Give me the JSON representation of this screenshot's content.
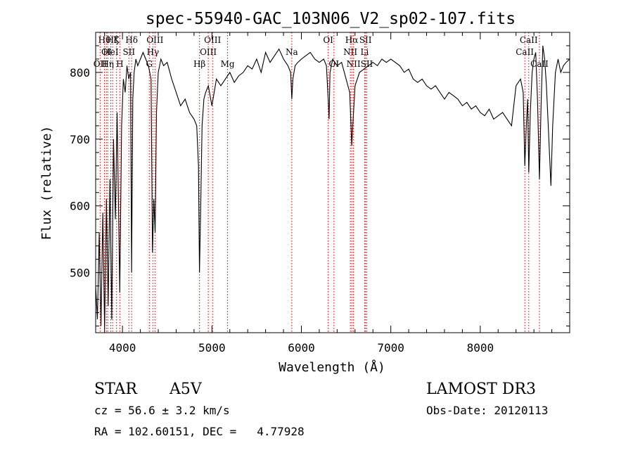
{
  "chart_data": {
    "type": "line",
    "title": "spec-55940-GAC_103N06_V2_sp02-107.fits",
    "xlabel": "Wavelength (Å)",
    "ylabel": "Flux (relative)",
    "xlim": [
      3700,
      9000
    ],
    "ylim": [
      410,
      860
    ],
    "grid": false,
    "x_ticks": [
      "4000",
      "5000",
      "6000",
      "7000",
      "8000"
    ],
    "y_ticks": [
      "500",
      "600",
      "700",
      "800"
    ],
    "series": [
      {
        "points": [
          [
            3700,
            480
          ],
          [
            3720,
            430
          ],
          [
            3740,
            560
          ],
          [
            3760,
            420
          ],
          [
            3780,
            590
          ],
          [
            3800,
            415
          ],
          [
            3820,
            610
          ],
          [
            3840,
            450
          ],
          [
            3860,
            640
          ],
          [
            3880,
            430
          ],
          [
            3900,
            700
          ],
          [
            3920,
            580
          ],
          [
            3940,
            740
          ],
          [
            3950,
            650
          ],
          [
            3970,
            470
          ],
          [
            3990,
            720
          ],
          [
            4010,
            790
          ],
          [
            4030,
            770
          ],
          [
            4050,
            810
          ],
          [
            4070,
            790
          ],
          [
            4090,
            800
          ],
          [
            4102,
            500
          ],
          [
            4115,
            760
          ],
          [
            4130,
            800
          ],
          [
            4150,
            820
          ],
          [
            4170,
            810
          ],
          [
            4200,
            820
          ],
          [
            4230,
            830
          ],
          [
            4260,
            820
          ],
          [
            4290,
            810
          ],
          [
            4320,
            790
          ],
          [
            4335,
            530
          ],
          [
            4350,
            610
          ],
          [
            4365,
            560
          ],
          [
            4380,
            740
          ],
          [
            4400,
            800
          ],
          [
            4430,
            820
          ],
          [
            4460,
            810
          ],
          [
            4500,
            815
          ],
          [
            4550,
            790
          ],
          [
            4600,
            770
          ],
          [
            4650,
            750
          ],
          [
            4700,
            760
          ],
          [
            4750,
            740
          ],
          [
            4800,
            730
          ],
          [
            4830,
            720
          ],
          [
            4850,
            660
          ],
          [
            4861,
            500
          ],
          [
            4875,
            600
          ],
          [
            4890,
            720
          ],
          [
            4910,
            760
          ],
          [
            4930,
            770
          ],
          [
            4960,
            780
          ],
          [
            5000,
            750
          ],
          [
            5050,
            790
          ],
          [
            5100,
            780
          ],
          [
            5150,
            790
          ],
          [
            5200,
            800
          ],
          [
            5250,
            785
          ],
          [
            5300,
            795
          ],
          [
            5350,
            800
          ],
          [
            5400,
            810
          ],
          [
            5450,
            805
          ],
          [
            5500,
            820
          ],
          [
            5550,
            800
          ],
          [
            5600,
            830
          ],
          [
            5650,
            815
          ],
          [
            5700,
            825
          ],
          [
            5750,
            835
          ],
          [
            5800,
            820
          ],
          [
            5850,
            810
          ],
          [
            5880,
            800
          ],
          [
            5893,
            760
          ],
          [
            5905,
            790
          ],
          [
            5930,
            810
          ],
          [
            5960,
            815
          ],
          [
            6000,
            820
          ],
          [
            6050,
            825
          ],
          [
            6100,
            830
          ],
          [
            6150,
            820
          ],
          [
            6200,
            815
          ],
          [
            6250,
            820
          ],
          [
            6280,
            810
          ],
          [
            6300,
            760
          ],
          [
            6310,
            730
          ],
          [
            6320,
            800
          ],
          [
            6350,
            820
          ],
          [
            6400,
            810
          ],
          [
            6450,
            815
          ],
          [
            6500,
            790
          ],
          [
            6540,
            770
          ],
          [
            6555,
            720
          ],
          [
            6563,
            690
          ],
          [
            6575,
            720
          ],
          [
            6600,
            780
          ],
          [
            6650,
            800
          ],
          [
            6700,
            805
          ],
          [
            6750,
            810
          ],
          [
            6800,
            815
          ],
          [
            6850,
            810
          ],
          [
            6900,
            820
          ],
          [
            6950,
            815
          ],
          [
            7000,
            820
          ],
          [
            7050,
            815
          ],
          [
            7100,
            810
          ],
          [
            7150,
            800
          ],
          [
            7200,
            805
          ],
          [
            7250,
            790
          ],
          [
            7300,
            785
          ],
          [
            7350,
            790
          ],
          [
            7400,
            780
          ],
          [
            7450,
            775
          ],
          [
            7500,
            780
          ],
          [
            7550,
            770
          ],
          [
            7600,
            760
          ],
          [
            7650,
            770
          ],
          [
            7700,
            765
          ],
          [
            7750,
            760
          ],
          [
            7800,
            750
          ],
          [
            7850,
            755
          ],
          [
            7900,
            745
          ],
          [
            7950,
            750
          ],
          [
            8000,
            740
          ],
          [
            8050,
            735
          ],
          [
            8100,
            745
          ],
          [
            8150,
            730
          ],
          [
            8200,
            735
          ],
          [
            8250,
            740
          ],
          [
            8300,
            730
          ],
          [
            8350,
            720
          ],
          [
            8400,
            780
          ],
          [
            8450,
            790
          ],
          [
            8480,
            770
          ],
          [
            8498,
            660
          ],
          [
            8515,
            720
          ],
          [
            8530,
            760
          ],
          [
            8542,
            650
          ],
          [
            8560,
            740
          ],
          [
            8580,
            800
          ],
          [
            8600,
            820
          ],
          [
            8620,
            830
          ],
          [
            8640,
            760
          ],
          [
            8662,
            640
          ],
          [
            8680,
            750
          ],
          [
            8700,
            840
          ],
          [
            8720,
            820
          ],
          [
            8740,
            780
          ],
          [
            8760,
            720
          ],
          [
            8790,
            630
          ],
          [
            8810,
            720
          ],
          [
            8840,
            800
          ],
          [
            8870,
            820
          ],
          [
            8900,
            800
          ],
          [
            8930,
            810
          ],
          [
            8960,
            815
          ],
          [
            9000,
            820
          ]
        ]
      }
    ],
    "lines": [
      {
        "x": 3750,
        "labels": [
          {
            "text": "OII",
            "row": 3
          }
        ]
      },
      {
        "x": 3798,
        "labels": [
          {
            "text": "Hθ",
            "row": 1
          }
        ]
      },
      {
        "x": 3820,
        "labels": [
          {
            "text": "OI",
            "row": 2
          }
        ]
      },
      {
        "x": 3835,
        "labels": [
          {
            "text": "Hη",
            "row": 3
          }
        ]
      },
      {
        "x": 3869,
        "labels": [
          {
            "text": "HeI",
            "row": 2
          }
        ]
      },
      {
        "x": 3889,
        "labels": [
          {
            "text": "Hζ",
            "row": 1
          }
        ]
      },
      {
        "x": 3934,
        "labels": [
          {
            "text": "K",
            "row": 1
          }
        ]
      },
      {
        "x": 3970,
        "labels": [
          {
            "text": "H",
            "row": 3
          }
        ]
      },
      {
        "x": 4072,
        "labels": [
          {
            "text": "SII",
            "row": 2
          }
        ]
      },
      {
        "x": 4102,
        "labels": [
          {
            "text": "Hδ",
            "row": 1
          }
        ]
      },
      {
        "x": 4300,
        "labels": [
          {
            "text": "G",
            "row": 3
          }
        ]
      },
      {
        "x": 4340,
        "labels": [
          {
            "text": "Hγ",
            "row": 2
          }
        ]
      },
      {
        "x": 4363,
        "labels": [
          {
            "text": "OIII",
            "row": 1
          }
        ]
      },
      {
        "x": 4861,
        "labels": [
          {
            "text": "Hβ",
            "row": 3
          }
        ]
      },
      {
        "x": 4959,
        "labels": [
          {
            "text": "OIII",
            "row": 2
          }
        ]
      },
      {
        "x": 5007,
        "labels": [
          {
            "text": "OIII",
            "row": 1
          }
        ]
      },
      {
        "x": 5175,
        "labels": [
          {
            "text": "Mg",
            "row": 3
          }
        ]
      },
      {
        "x": 5893,
        "labels": [
          {
            "text": "Na",
            "row": 2
          }
        ]
      },
      {
        "x": 6300,
        "labels": [
          {
            "text": "OI",
            "row": 1
          }
        ]
      },
      {
        "x": 6364,
        "labels": [
          {
            "text": "OI",
            "row": 3
          }
        ]
      },
      {
        "x": 6548,
        "labels": [
          {
            "text": "NII",
            "row": 2
          }
        ]
      },
      {
        "x": 6563,
        "labels": [
          {
            "text": "Hα",
            "row": 1
          }
        ]
      },
      {
        "x": 6583,
        "labels": [
          {
            "text": "NII",
            "row": 3
          }
        ]
      },
      {
        "x": 6707,
        "labels": [
          {
            "text": "Li",
            "row": 2
          }
        ]
      },
      {
        "x": 6717,
        "labels": [
          {
            "text": "SII",
            "row": 1
          }
        ]
      },
      {
        "x": 6731,
        "labels": [
          {
            "text": "SII",
            "row": 3
          }
        ]
      },
      {
        "x": 8498,
        "labels": [
          {
            "text": "CaII",
            "row": 2
          }
        ]
      },
      {
        "x": 8542,
        "labels": [
          {
            "text": "CaII",
            "row": 1
          }
        ]
      },
      {
        "x": 8662,
        "labels": [
          {
            "text": "CaII",
            "row": 3
          }
        ]
      }
    ],
    "colors": {
      "line_markers": "#cc0000",
      "spectrum": "#000000",
      "axes": "#000000"
    }
  },
  "info": {
    "class": "STAR",
    "subclass": "A5V",
    "survey": "LAMOST DR3",
    "cz": "cz = 56.6 ± 3.2 km/s",
    "obs_date": "Obs-Date: 20120113",
    "coords": "RA = 102.60151, DEC =   4.77928"
  }
}
